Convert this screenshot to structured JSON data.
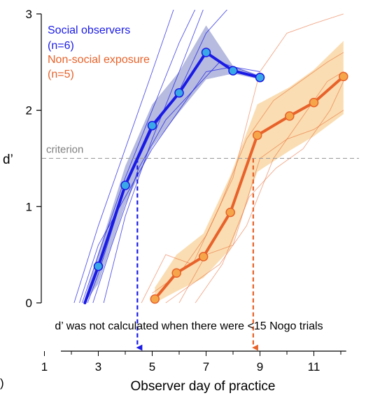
{
  "chart_data": {
    "type": "line",
    "ylabel": "d’",
    "xlabel": "Observer day of practice",
    "ylim": [
      0,
      3
    ],
    "yticks": [
      0,
      1,
      2,
      3
    ],
    "xlim": [
      0,
      12.2
    ],
    "xticks": [
      1,
      3,
      5,
      7,
      9,
      11
    ],
    "criterion": {
      "value": 1.5,
      "label": "criterion"
    },
    "note": "d’ was not calculated when there were <15 Nogo trials",
    "panel_letter": ")",
    "series": [
      {
        "name": "Social observers",
        "n_label": "(n=6)",
        "color": "#1a1ae6",
        "band_color": "#aeb4dc",
        "x": [
          2.5,
          3,
          4,
          5,
          6,
          7,
          8,
          9
        ],
        "y": [
          0.0,
          0.38,
          1.22,
          1.84,
          2.18,
          2.6,
          2.41,
          2.34
        ],
        "y_low": [
          0.0,
          0.2,
          1.02,
          1.62,
          1.98,
          2.32,
          2.38,
          2.32
        ],
        "y_high": [
          0.05,
          0.52,
          1.42,
          2.06,
          2.4,
          2.88,
          2.46,
          2.36
        ],
        "criterion_day": 4.45,
        "individual": [
          {
            "x": [
              2.1,
              3,
              4,
              5,
              5.8
            ],
            "y": [
              0.0,
              0.8,
              1.6,
              2.4,
              3.05
            ]
          },
          {
            "x": [
              2.4,
              3,
              4,
              5,
              6,
              6.6
            ],
            "y": [
              0.0,
              0.5,
              1.3,
              2.0,
              2.7,
              3.05
            ]
          },
          {
            "x": [
              2.6,
              3,
              4,
              5,
              6,
              7,
              7.8
            ],
            "y": [
              0.0,
              0.3,
              1.2,
              1.8,
              2.2,
              2.8,
              3.05
            ]
          },
          {
            "x": [
              3.2,
              4,
              5,
              6,
              6.9
            ],
            "y": [
              0.0,
              0.9,
              1.7,
              2.4,
              3.05
            ]
          },
          {
            "x": [
              2.8,
              3.5,
              4.5,
              5.5,
              6.5,
              7.5,
              8.5,
              9
            ],
            "y": [
              0.0,
              0.6,
              1.4,
              1.9,
              2.2,
              2.5,
              2.4,
              2.35
            ]
          },
          {
            "x": [
              2.3,
              3,
              4,
              5,
              6,
              7,
              8,
              9
            ],
            "y": [
              0.0,
              0.6,
              1.1,
              1.6,
              2.0,
              2.4,
              2.45,
              2.4
            ]
          }
        ]
      },
      {
        "name": "Non-social exposure",
        "n_label": "(n=5)",
        "color": "#e8622a",
        "band_color": "#f9d9aa",
        "x": [
          5.1,
          5.9,
          6.9,
          7.9,
          8.9,
          10.1,
          11,
          12.1
        ],
        "y": [
          0.04,
          0.31,
          0.48,
          0.94,
          1.74,
          1.94,
          2.08,
          2.35
        ],
        "y_low": [
          0.0,
          0.12,
          0.26,
          0.56,
          1.36,
          1.58,
          1.73,
          1.96
        ],
        "y_high": [
          0.16,
          0.5,
          0.72,
          1.32,
          2.06,
          2.24,
          2.42,
          2.72
        ],
        "criterion_day": 8.75,
        "individual": [
          {
            "x": [
              4.6,
              5.5,
              6.5,
              7.5,
              8.5,
              9.5,
              10.5,
              11.5,
              12.1
            ],
            "y": [
              0.0,
              0.5,
              0.4,
              1.0,
              1.7,
              2.1,
              2.3,
              2.5,
              2.6
            ]
          },
          {
            "x": [
              5.0,
              6.0,
              7.0,
              8.0,
              9.0,
              10.0,
              11.0,
              12.1
            ],
            "y": [
              0.1,
              0.3,
              0.7,
              1.3,
              2.4,
              2.8,
              2.9,
              3.0
            ]
          },
          {
            "x": [
              5.5,
              6.5,
              7.5,
              8.5,
              9.5,
              10.5,
              11.5,
              12.1
            ],
            "y": [
              0.0,
              0.2,
              0.4,
              0.8,
              1.5,
              1.9,
              2.3,
              2.4
            ]
          },
          {
            "x": [
              6.0,
              7.0,
              8.0,
              9.0,
              10.0,
              11.0,
              12.1
            ],
            "y": [
              0.0,
              0.5,
              0.6,
              1.5,
              1.7,
              1.8,
              2.0
            ]
          },
          {
            "x": [
              6.6,
              7.6,
              8.6,
              9.6,
              10.6,
              11.6,
              12.1
            ],
            "y": [
              0.0,
              0.4,
              1.1,
              1.4,
              1.6,
              2.0,
              2.3
            ]
          }
        ]
      }
    ]
  }
}
